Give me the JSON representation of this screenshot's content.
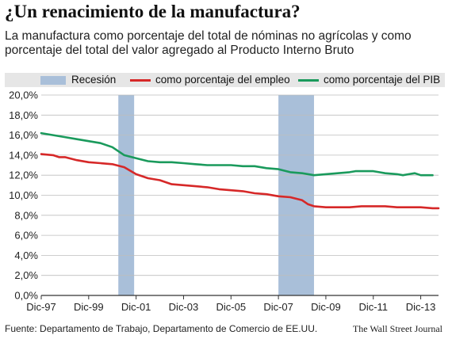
{
  "title": "¿Un renacimiento de la manufactura?",
  "subtitle": "La manufactura como porcentaje del total de nóminas no agrícolas y como porcentaje del total del valor agregado al Producto Interno Bruto",
  "legend": {
    "recession": "Recesión",
    "employment": "como porcentaje del empleo",
    "gdp": "como porcentaje del PIB"
  },
  "colors": {
    "employment": "#d62828",
    "gdp": "#1a9a5c",
    "recession": "#a9bfd9"
  },
  "footer": {
    "source": "Fuente: Departamento de Trabajo, Departamento de Comercio de EE.UU.",
    "publisher": "The Wall Street Journal"
  },
  "chart_data": {
    "type": "line",
    "title": "¿Un renacimiento de la manufactura?",
    "xlabel": "",
    "ylabel": "",
    "ylim": [
      0,
      20
    ],
    "yticks": [
      "0,0%",
      "2,0%",
      "4,0%",
      "6,0%",
      "8,0%",
      "10,0%",
      "12,0%",
      "14,0%",
      "16,0%",
      "18,0%",
      "20,0%"
    ],
    "xlim": [
      "1997-12",
      "2014-09"
    ],
    "xticks": [
      {
        "date": "1997-12",
        "label": "Dic-97"
      },
      {
        "date": "1999-12",
        "label": "Dic-99"
      },
      {
        "date": "2001-12",
        "label": "Dic-01"
      },
      {
        "date": "2003-12",
        "label": "Dic-03"
      },
      {
        "date": "2005-12",
        "label": "Dic-05"
      },
      {
        "date": "2007-12",
        "label": "Dic-07"
      },
      {
        "date": "2009-12",
        "label": "Dic-09"
      },
      {
        "date": "2011-12",
        "label": "Dic-11"
      },
      {
        "date": "2013-12",
        "label": "Dic-13"
      }
    ],
    "grid": true,
    "legend_position": "top",
    "recessions": [
      {
        "start": "2001-03",
        "end": "2001-11"
      },
      {
        "start": "2007-12",
        "end": "2009-06"
      }
    ],
    "series": [
      {
        "name": "como porcentaje del empleo",
        "points": [
          [
            "1997-12",
            14.1
          ],
          [
            "1998-06",
            14.0
          ],
          [
            "1998-09",
            13.8
          ],
          [
            "1998-12",
            13.8
          ],
          [
            "1999-06",
            13.5
          ],
          [
            "1999-12",
            13.3
          ],
          [
            "2000-06",
            13.2
          ],
          [
            "2000-12",
            13.1
          ],
          [
            "2001-06",
            12.8
          ],
          [
            "2001-12",
            12.1
          ],
          [
            "2002-06",
            11.7
          ],
          [
            "2002-12",
            11.5
          ],
          [
            "2003-06",
            11.1
          ],
          [
            "2003-12",
            11.0
          ],
          [
            "2004-06",
            10.9
          ],
          [
            "2004-12",
            10.8
          ],
          [
            "2005-06",
            10.6
          ],
          [
            "2005-12",
            10.5
          ],
          [
            "2006-06",
            10.4
          ],
          [
            "2006-12",
            10.2
          ],
          [
            "2007-06",
            10.1
          ],
          [
            "2007-12",
            9.9
          ],
          [
            "2008-06",
            9.8
          ],
          [
            "2008-12",
            9.5
          ],
          [
            "2009-03",
            9.1
          ],
          [
            "2009-06",
            8.9
          ],
          [
            "2009-12",
            8.8
          ],
          [
            "2010-06",
            8.8
          ],
          [
            "2010-12",
            8.8
          ],
          [
            "2011-06",
            8.9
          ],
          [
            "2011-12",
            8.9
          ],
          [
            "2012-06",
            8.9
          ],
          [
            "2012-12",
            8.8
          ],
          [
            "2013-06",
            8.8
          ],
          [
            "2013-12",
            8.8
          ],
          [
            "2014-06",
            8.7
          ],
          [
            "2014-09",
            8.7
          ]
        ]
      },
      {
        "name": "como porcentaje del PIB",
        "points": [
          [
            "1997-12",
            16.2
          ],
          [
            "1998-06",
            16.0
          ],
          [
            "1998-12",
            15.8
          ],
          [
            "1999-06",
            15.6
          ],
          [
            "1999-12",
            15.4
          ],
          [
            "2000-06",
            15.2
          ],
          [
            "2000-12",
            14.8
          ],
          [
            "2001-06",
            14.0
          ],
          [
            "2001-12",
            13.7
          ],
          [
            "2002-06",
            13.4
          ],
          [
            "2002-12",
            13.3
          ],
          [
            "2003-06",
            13.3
          ],
          [
            "2003-12",
            13.2
          ],
          [
            "2004-06",
            13.1
          ],
          [
            "2004-12",
            13.0
          ],
          [
            "2005-06",
            13.0
          ],
          [
            "2005-12",
            13.0
          ],
          [
            "2006-06",
            12.9
          ],
          [
            "2006-12",
            12.9
          ],
          [
            "2007-06",
            12.7
          ],
          [
            "2007-12",
            12.6
          ],
          [
            "2008-06",
            12.3
          ],
          [
            "2008-12",
            12.2
          ],
          [
            "2009-06",
            12.0
          ],
          [
            "2009-12",
            12.1
          ],
          [
            "2010-06",
            12.2
          ],
          [
            "2010-12",
            12.3
          ],
          [
            "2011-03",
            12.4
          ],
          [
            "2011-06",
            12.4
          ],
          [
            "2011-12",
            12.4
          ],
          [
            "2012-03",
            12.3
          ],
          [
            "2012-06",
            12.2
          ],
          [
            "2012-12",
            12.1
          ],
          [
            "2013-03",
            12.0
          ],
          [
            "2013-06",
            12.1
          ],
          [
            "2013-09",
            12.2
          ],
          [
            "2013-12",
            12.0
          ],
          [
            "2014-06",
            12.0
          ]
        ]
      }
    ]
  }
}
